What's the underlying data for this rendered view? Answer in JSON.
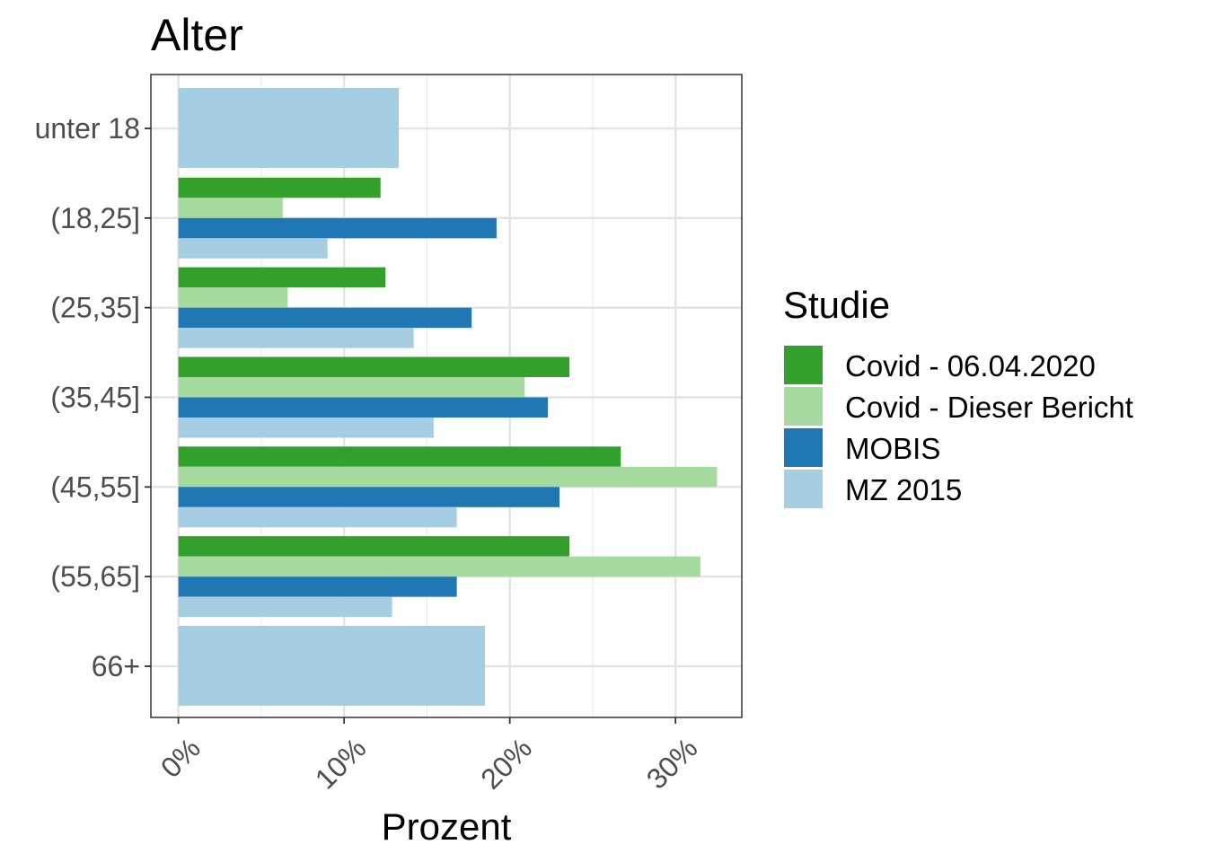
{
  "chart_data": {
    "type": "bar",
    "orientation": "horizontal",
    "title": "Alter",
    "xlabel": "Prozent",
    "ylabel": "",
    "xlim": [
      -0.0166,
      0.34
    ],
    "xticks": [
      0,
      0.1,
      0.2,
      0.3
    ],
    "xtick_labels": [
      "0%",
      "10%",
      "20%",
      "30%"
    ],
    "grid": true,
    "categories": [
      "unter 18",
      "(18,25]",
      "(25,35]",
      "(35,45]",
      "(45,55]",
      "(55,65]",
      "66+"
    ],
    "legend": {
      "title": "Studie",
      "position": "right"
    },
    "series": [
      {
        "name": "Covid - 06.04.2020",
        "color": "#33a02c",
        "values": [
          null,
          0.122,
          0.125,
          0.236,
          0.267,
          0.236,
          null
        ]
      },
      {
        "name": "Covid - Dieser Bericht",
        "color": "#a6dba0",
        "values": [
          null,
          0.063,
          0.066,
          0.209,
          0.325,
          0.315,
          null
        ]
      },
      {
        "name": "MOBIS",
        "color": "#1f78b4",
        "values": [
          null,
          0.192,
          0.177,
          0.223,
          0.23,
          0.168,
          null
        ]
      },
      {
        "name": "MZ 2015",
        "color": "#a6cee3",
        "values": [
          0.133,
          0.09,
          0.142,
          0.154,
          0.168,
          0.129,
          0.185
        ]
      }
    ]
  }
}
